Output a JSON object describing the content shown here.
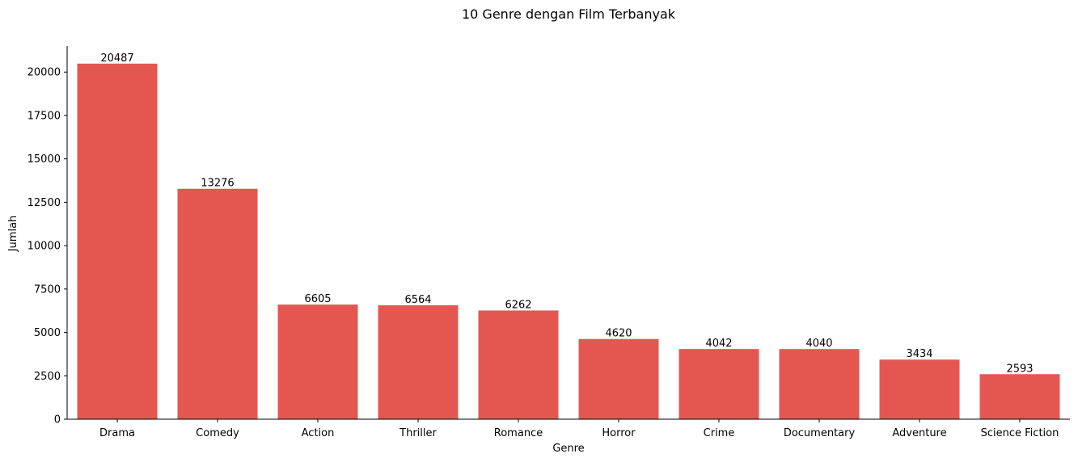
{
  "chart_data": {
    "type": "bar",
    "title": "10 Genre dengan Film Terbanyak",
    "xlabel": "Genre",
    "ylabel": "Jumlah",
    "categories": [
      "Drama",
      "Comedy",
      "Action",
      "Thriller",
      "Romance",
      "Horror",
      "Crime",
      "Documentary",
      "Adventure",
      "Science Fiction"
    ],
    "values": [
      20487,
      13276,
      6605,
      6564,
      6262,
      4620,
      4042,
      4040,
      3434,
      2593
    ],
    "data_labels": [
      "20487",
      "13276",
      "6605",
      "6564",
      "6262",
      "4620",
      "4042",
      "4040",
      "3434",
      "2593"
    ],
    "ylim": [
      0,
      21500
    ],
    "yticks": [
      0,
      2500,
      5000,
      7500,
      10000,
      12500,
      15000,
      17500,
      20000
    ],
    "ytick_labels": [
      "0",
      "2500",
      "5000",
      "7500",
      "10000",
      "12500",
      "15000",
      "17500",
      "20000"
    ],
    "bar_color": "#e45751",
    "grid": false,
    "legend": "none"
  }
}
